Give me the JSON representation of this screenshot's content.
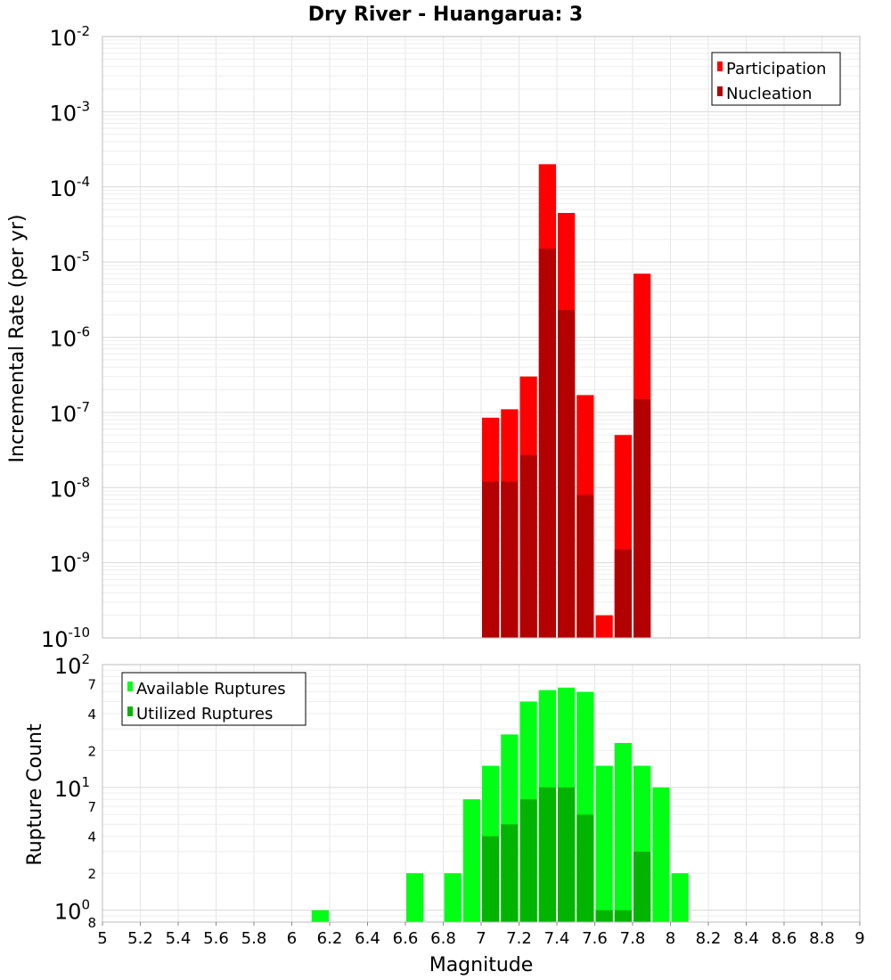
{
  "colors": {
    "participation": "#ff0000",
    "nucleation": "#b30000",
    "available": "#00ff14",
    "utilized": "#00b400",
    "grid": "#e6e6e6",
    "frame": "#bbbbbb"
  },
  "chart_data": [
    {
      "type": "bar",
      "title": "Dry River - Huangarua: 3",
      "xlabel": "",
      "ylabel": "Incremental Rate (per yr)",
      "xlim": [
        5,
        9
      ],
      "ylim": [
        1e-10,
        0.01
      ],
      "yscale": "log",
      "grid": true,
      "legend_position": "top-right",
      "bin_width": 0.1,
      "y_tick_labels": [
        {
          "base": "10",
          "exp": "-2",
          "v": 0.01
        },
        {
          "base": "10",
          "exp": "-3",
          "v": 0.001
        },
        {
          "base": "10",
          "exp": "-4",
          "v": 0.0001
        },
        {
          "base": "10",
          "exp": "-5",
          "v": 1e-05
        },
        {
          "base": "10",
          "exp": "-6",
          "v": 1e-06
        },
        {
          "base": "10",
          "exp": "-7",
          "v": 1e-07
        },
        {
          "base": "10",
          "exp": "-8",
          "v": 1e-08
        },
        {
          "base": "10",
          "exp": "-9",
          "v": 1e-09
        },
        {
          "base": "10",
          "exp": "-10",
          "v": 1e-10
        }
      ],
      "series": [
        {
          "name": "Participation",
          "x": [
            7.05,
            7.15,
            7.25,
            7.35,
            7.45,
            7.55,
            7.65,
            7.75,
            7.85
          ],
          "values": [
            8.5e-08,
            1.1e-07,
            3e-07,
            0.0002,
            4.5e-05,
            1.7e-07,
            2e-10,
            5e-08,
            7e-06
          ]
        },
        {
          "name": "Nucleation",
          "x": [
            7.05,
            7.15,
            7.25,
            7.35,
            7.45,
            7.55,
            7.75,
            7.85
          ],
          "values": [
            1.2e-08,
            1.2e-08,
            2.7e-08,
            1.5e-05,
            2.3e-06,
            8e-09,
            1.5e-09,
            1.5e-07
          ]
        }
      ]
    },
    {
      "type": "bar",
      "title": "",
      "xlabel": "Magnitude",
      "ylabel": "Rupture Count",
      "xlim": [
        5,
        9
      ],
      "ylim": [
        0.8,
        100
      ],
      "yscale": "log",
      "grid": true,
      "legend_position": "top-left",
      "bin_width": 0.1,
      "x_tick_labels": [
        "5",
        "5.2",
        "5.4",
        "5.6",
        "5.8",
        "6",
        "6.2",
        "6.4",
        "6.6",
        "6.8",
        "7",
        "7.2",
        "7.4",
        "7.6",
        "7.8",
        "8",
        "8.2",
        "8.4",
        "8.6",
        "8.8",
        "9"
      ],
      "y_tick_labels": [
        {
          "base": "10",
          "exp": "2",
          "v": 100
        },
        {
          "base": "10",
          "exp": "1",
          "v": 10
        },
        {
          "base": "10",
          "exp": "0",
          "v": 1
        }
      ],
      "y_minor_labels": [
        {
          "text": "7",
          "v": 70
        },
        {
          "text": "4",
          "v": 40
        },
        {
          "text": "2",
          "v": 20
        },
        {
          "text": "7",
          "v": 7
        },
        {
          "text": "4",
          "v": 4
        },
        {
          "text": "2",
          "v": 2
        },
        {
          "text": "8",
          "v": 0.8
        }
      ],
      "series": [
        {
          "name": "Available Ruptures",
          "x": [
            6.15,
            6.65,
            6.85,
            6.95,
            7.05,
            7.15,
            7.25,
            7.35,
            7.45,
            7.55,
            7.65,
            7.75,
            7.85,
            7.95,
            8.05
          ],
          "values": [
            1,
            2,
            2,
            8,
            15,
            27,
            50,
            62,
            65,
            60,
            15,
            23,
            15,
            10,
            2
          ]
        },
        {
          "name": "Utilized Ruptures",
          "x": [
            7.05,
            7.15,
            7.25,
            7.35,
            7.45,
            7.55,
            7.65,
            7.75,
            7.85
          ],
          "values": [
            4,
            5,
            8,
            10,
            10,
            6,
            1,
            1,
            3
          ]
        }
      ]
    }
  ]
}
